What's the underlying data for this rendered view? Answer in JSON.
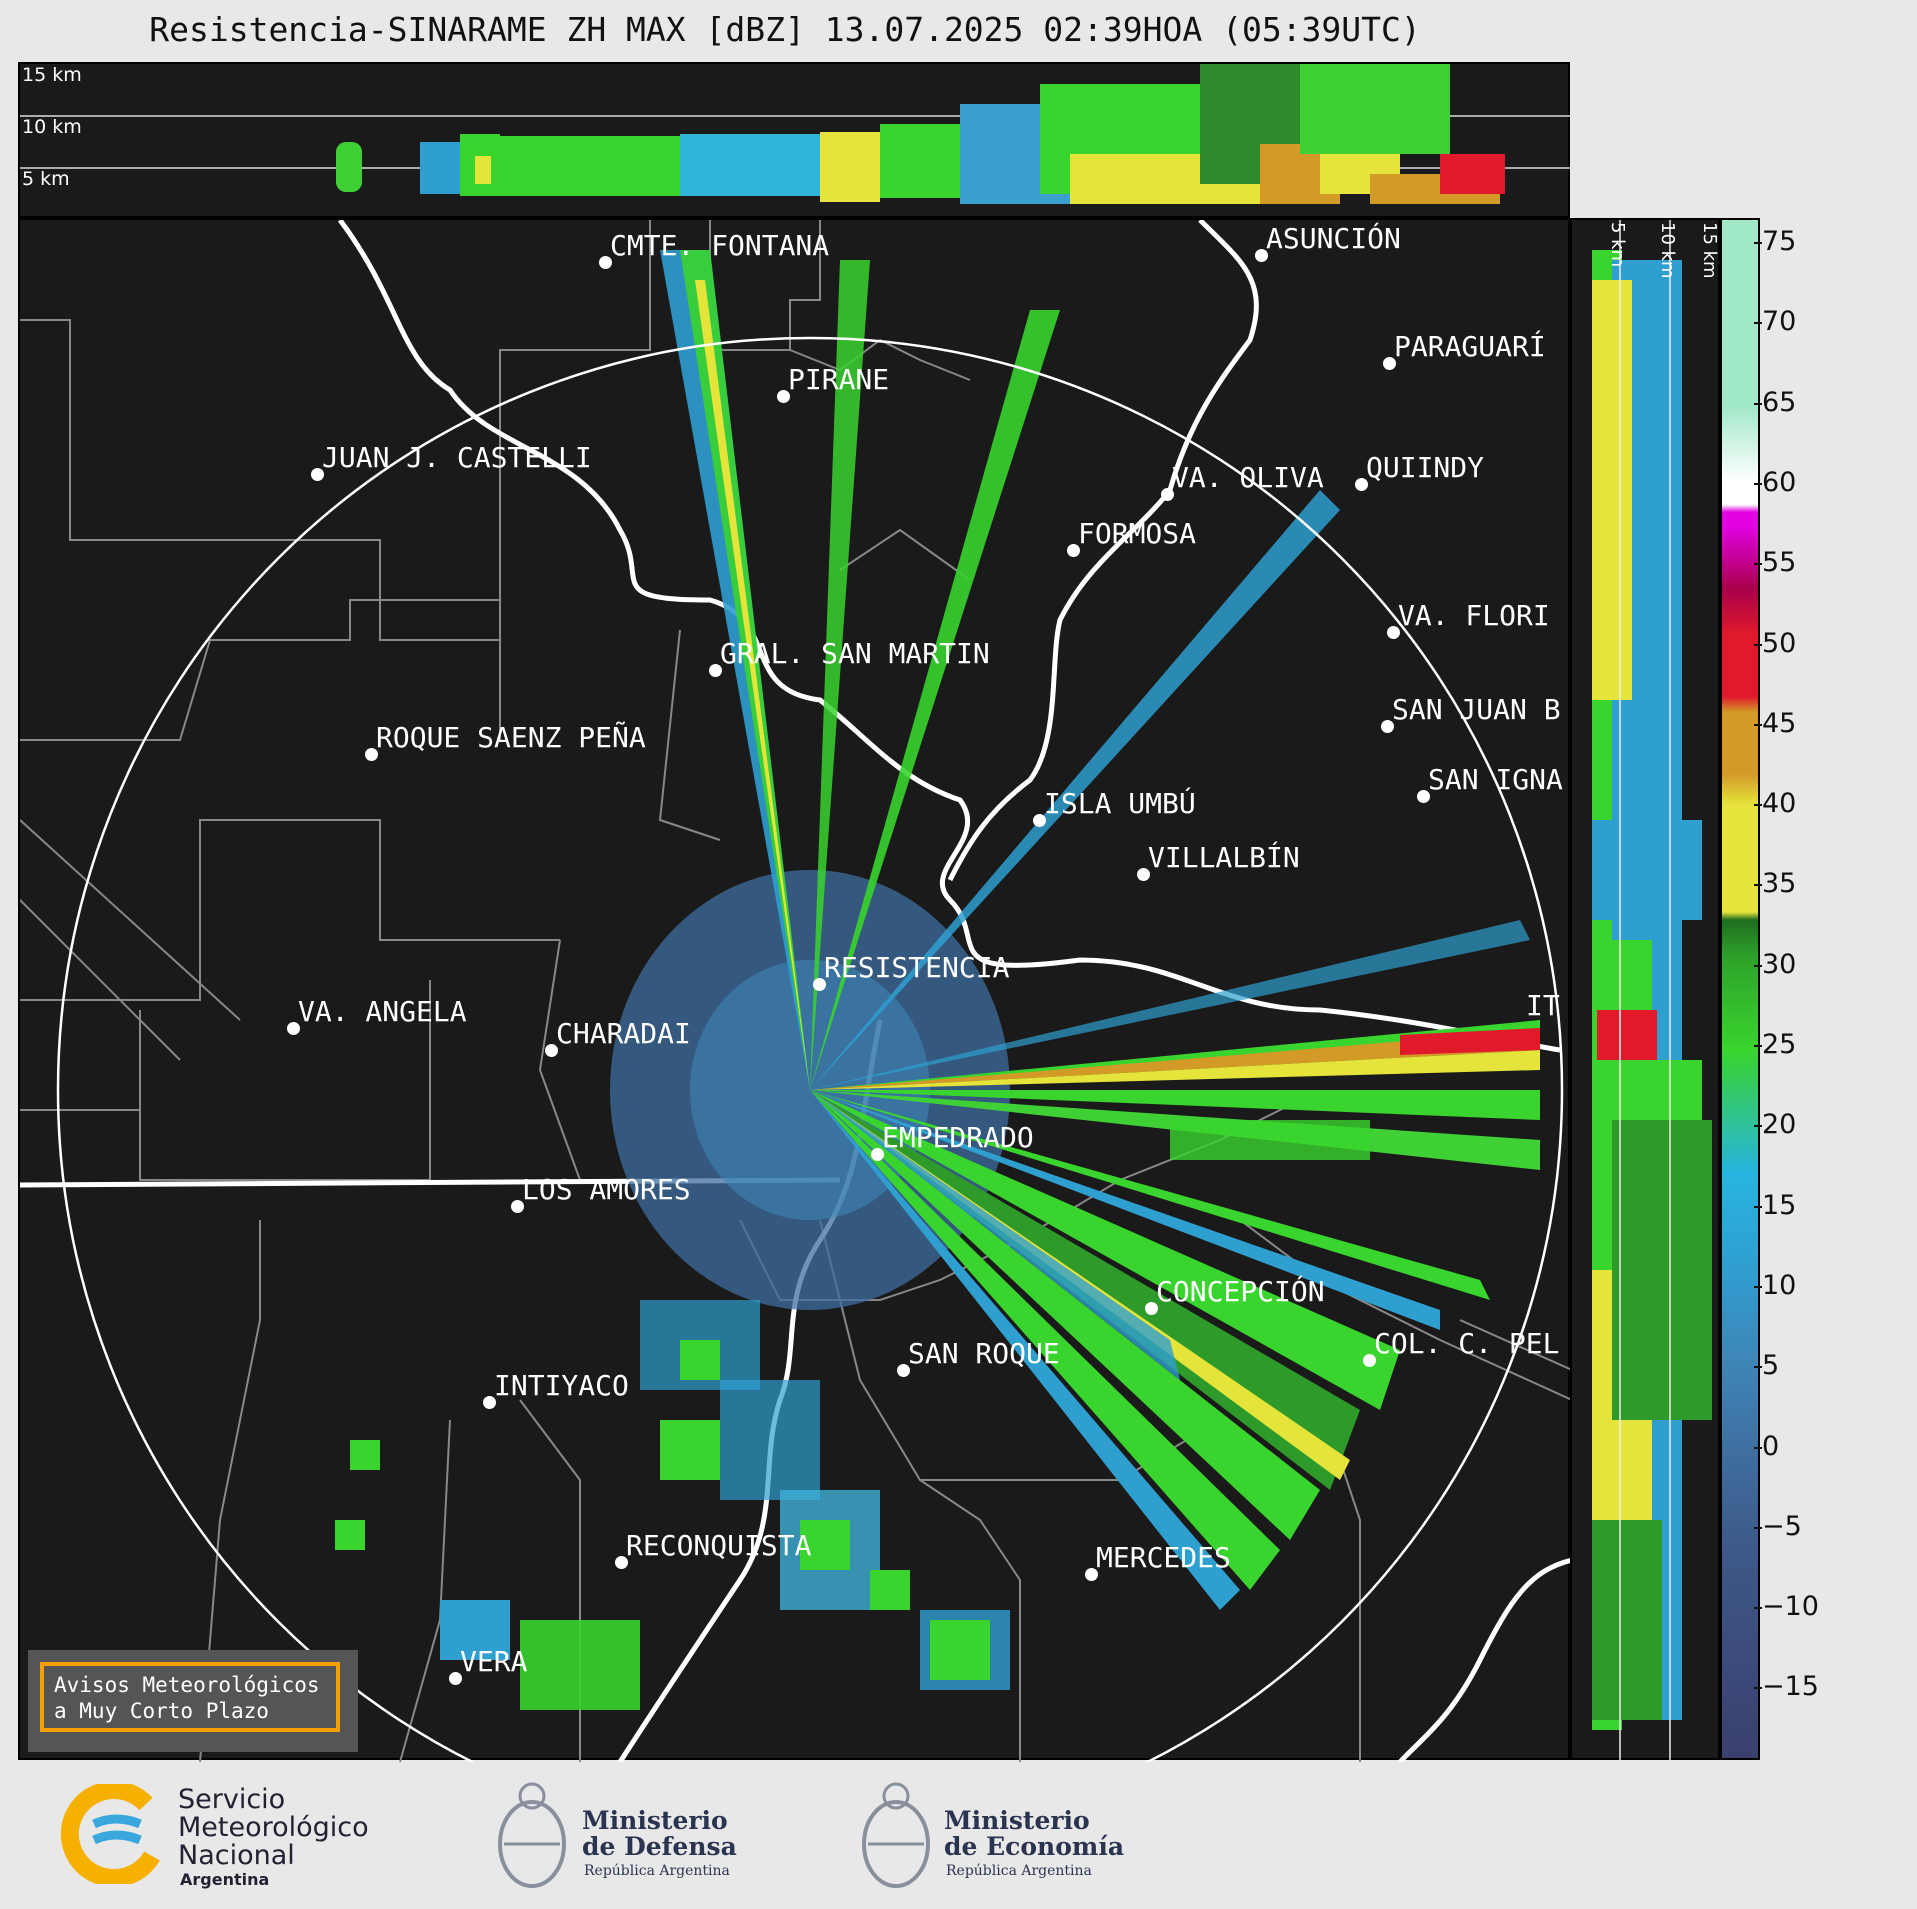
{
  "title": "Resistencia-SINARAME ZH MAX [dBZ] 13.07.2025 02:39HOA (05:39UTC)",
  "top_panel": {
    "height_labels": [
      "15 km",
      "10 km",
      "5 km"
    ]
  },
  "side_panel": {
    "height_labels": [
      "5 km",
      "10 km",
      "15 km"
    ]
  },
  "cities": [
    {
      "name": "CMTE. FONTANA"
    },
    {
      "name": "ASUNCIÓN"
    },
    {
      "name": "PARAGUARÍ"
    },
    {
      "name": "PIRANE"
    },
    {
      "name": "JUAN J. CASTELLI"
    },
    {
      "name": "VA. OLIVA"
    },
    {
      "name": "QUIINDY"
    },
    {
      "name": "FORMOSA"
    },
    {
      "name": "VA. FLORI"
    },
    {
      "name": "GRAL. SAN MARTIN"
    },
    {
      "name": "SAN JUAN B"
    },
    {
      "name": "ROQUE SAENZ PEÑA"
    },
    {
      "name": "SAN IGNA"
    },
    {
      "name": "ISLA UMBÚ"
    },
    {
      "name": "VILLALBÍN"
    },
    {
      "name": "RESISTENCIA"
    },
    {
      "name": "VA. ANGELA"
    },
    {
      "name": "CHARADAI"
    },
    {
      "name": "IT"
    },
    {
      "name": "EMPEDRADO"
    },
    {
      "name": "LOS AMORES"
    },
    {
      "name": "CONCEPCIÓN"
    },
    {
      "name": "SAN ROQUE"
    },
    {
      "name": "COL. C. PEL"
    },
    {
      "name": "INTIYACO"
    },
    {
      "name": "RECONQUISTA"
    },
    {
      "name": "MERCEDES"
    },
    {
      "name": "VERA"
    }
  ],
  "colorbar": {
    "ticks": [
      "75",
      "70",
      "65",
      "60",
      "55",
      "50",
      "45",
      "40",
      "35",
      "30",
      "25",
      "20",
      "15",
      "10",
      "5",
      "0",
      "−5",
      "−10",
      "−15"
    ],
    "colors": {
      "minus15": "#3a3f6e",
      "minus5": "#3d5a8a",
      "zero": "#3f6fa0",
      "five": "#3e86b8",
      "ten": "#2f9fd0",
      "fifteen": "#27b4e0",
      "twenty": "#39d42e",
      "twentyfive": "#2ea22a",
      "thirty": "#1f6e1f",
      "thirtyfive": "#e4e43a",
      "forty": "#d39a28",
      "fortyfive": "#e01a2a",
      "fifty": "#a8004a",
      "fiftyfive": "#e000e0",
      "sixty": "#ffffff",
      "seventy": "#a0e8c8"
    }
  },
  "avisos": {
    "line1": "Avisos Meteorológicos",
    "line2": "a Muy Corto Plazo"
  },
  "logos": {
    "smn": [
      "Servicio",
      "Meteorológico",
      "Nacional",
      "Argentina"
    ],
    "defensa": [
      "Ministerio",
      "de Defensa",
      "República Argentina"
    ],
    "economia": [
      "Ministerio",
      "de Economía",
      "República Argentina"
    ]
  }
}
